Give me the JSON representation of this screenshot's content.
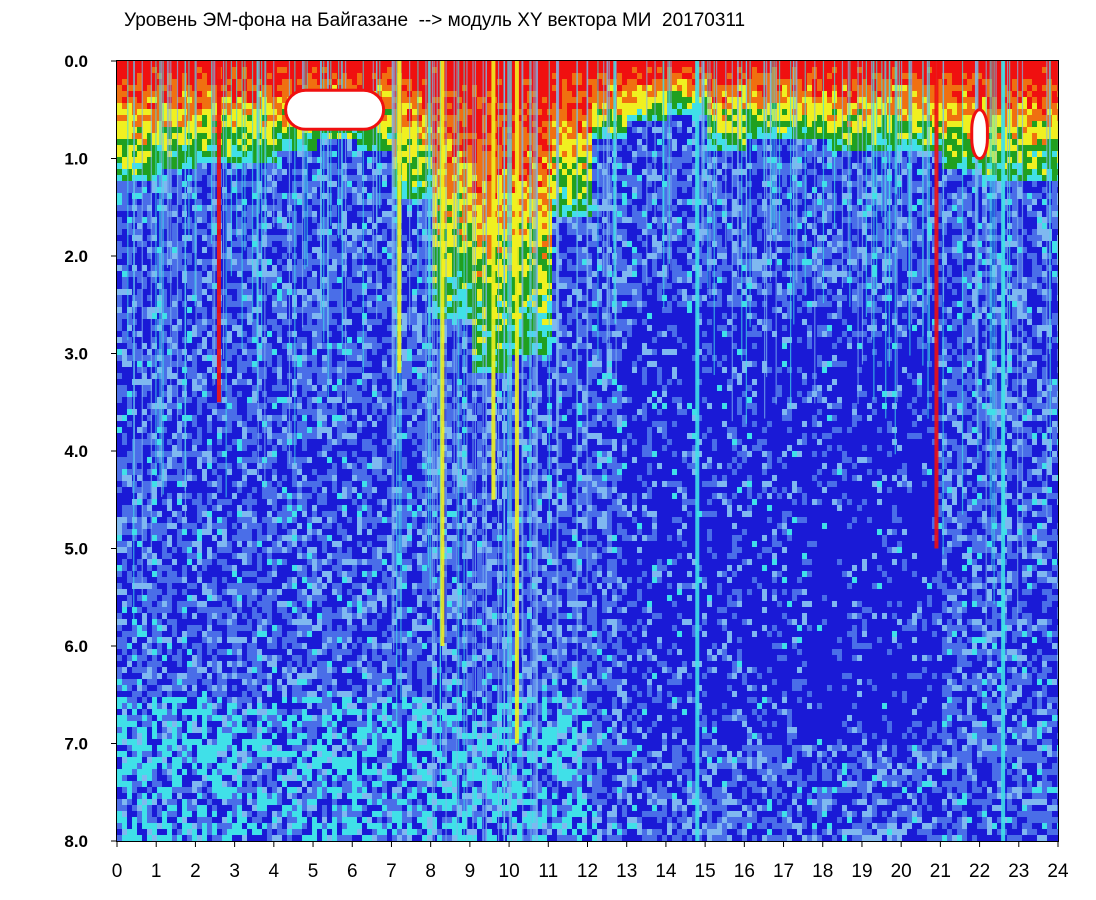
{
  "chart_data": {
    "type": "heatmap",
    "title": "Уровень ЭМ-фона на Байгазане  --> модуль XY вектора МИ  20170311",
    "xlabel": "",
    "ylabel": "",
    "xlim": [
      0,
      24
    ],
    "ylim": [
      0,
      8
    ],
    "y_inverted": true,
    "x_ticks": [
      "0",
      "1",
      "2",
      "3",
      "4",
      "5",
      "6",
      "7",
      "8",
      "9",
      "10",
      "11",
      "12",
      "13",
      "14",
      "15",
      "16",
      "17",
      "18",
      "19",
      "20",
      "21",
      "22",
      "23",
      "24"
    ],
    "y_ticks": [
      "0.0",
      "1.0",
      "2.0",
      "3.0",
      "4.0",
      "5.0",
      "6.0",
      "7.0",
      "8.0"
    ],
    "colorscale": [
      "#1a1ad6",
      "#4a6ee8",
      "#7fb8f0",
      "#40e0e8",
      "#20a020",
      "#f0f020",
      "#f07010",
      "#f01010",
      "#ffffff"
    ],
    "hour_bands": [
      {
        "hour": 0,
        "extent": 1.2
      },
      {
        "hour": 1,
        "extent": 1.1
      },
      {
        "hour": 2,
        "extent": 1.0
      },
      {
        "hour": 3,
        "extent": 1.0
      },
      {
        "hour": 4,
        "extent": 0.9
      },
      {
        "hour": 5,
        "extent": 0.8
      },
      {
        "hour": 6,
        "extent": 0.9
      },
      {
        "hour": 7,
        "extent": 1.4
      },
      {
        "hour": 8,
        "extent": 2.6
      },
      {
        "hour": 9,
        "extent": 3.2
      },
      {
        "hour": 10,
        "extent": 3.0
      },
      {
        "hour": 11,
        "extent": 1.6
      },
      {
        "hour": 12,
        "extent": 0.8
      },
      {
        "hour": 13,
        "extent": 0.6
      },
      {
        "hour": 14,
        "extent": 0.5
      },
      {
        "hour": 15,
        "extent": 0.9
      },
      {
        "hour": 16,
        "extent": 0.8
      },
      {
        "hour": 17,
        "extent": 0.8
      },
      {
        "hour": 18,
        "extent": 0.9
      },
      {
        "hour": 19,
        "extent": 0.9
      },
      {
        "hour": 20,
        "extent": 0.9
      },
      {
        "hour": 21,
        "extent": 1.1
      },
      {
        "hour": 22,
        "extent": 1.2
      },
      {
        "hour": 23,
        "extent": 1.2
      }
    ],
    "saturated_patches": [
      {
        "x": [
          4.3,
          6.8
        ],
        "y": [
          0.3,
          0.7
        ]
      },
      {
        "x": [
          21.8,
          22.2
        ],
        "y": [
          0.5,
          1.0
        ]
      }
    ],
    "bright_streaks": [
      {
        "x": 2.6,
        "y_end": 3.5,
        "level": "red"
      },
      {
        "x": 7.2,
        "y_end": 3.2,
        "level": "yellow"
      },
      {
        "x": 8.3,
        "y_end": 6.0,
        "level": "yellow"
      },
      {
        "x": 9.6,
        "y_end": 4.5,
        "level": "yellow"
      },
      {
        "x": 10.2,
        "y_end": 7.0,
        "level": "yellow"
      },
      {
        "x": 14.8,
        "y_end": 8.0,
        "level": "cyan"
      },
      {
        "x": 20.9,
        "y_end": 5.0,
        "level": "red"
      },
      {
        "x": 22.6,
        "y_end": 8.0,
        "level": "cyan"
      }
    ],
    "quiet_regions": [
      {
        "x": [
          13,
          21
        ],
        "y": [
          2.5,
          7.0
        ]
      },
      {
        "x": [
          17.5,
          20.5
        ],
        "y": [
          4.5,
          5.5
        ]
      },
      {
        "x": [
          17.5,
          20.5
        ],
        "y": [
          6.0,
          6.8
        ]
      }
    ]
  }
}
